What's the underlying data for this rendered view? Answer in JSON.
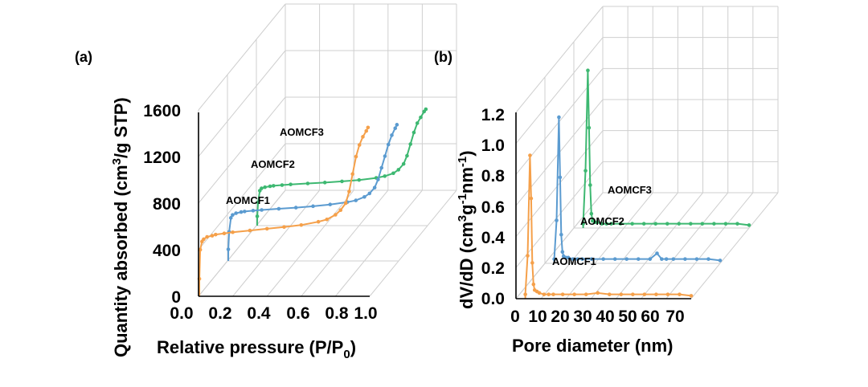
{
  "chart_data": [
    {
      "panel": "(a)",
      "type": "line",
      "xlabel": "Relative pressure (P/P",
      "xlabel_sub": "0",
      "xlabel_end": ")",
      "ylabel": "Quantity absorbed (cm",
      "ylabel_sup": "3",
      "ylabel_end": "/g STP)",
      "xticks": [
        "0.0",
        "0.2",
        "0.4",
        "0.6",
        "0.8",
        "1.0"
      ],
      "yticks": [
        "0",
        "400",
        "800",
        "1200",
        "1600"
      ],
      "xlim": [
        0,
        1.0
      ],
      "ylim": [
        0,
        1600
      ],
      "series": [
        {
          "name": "AOMCF1",
          "color": "#f5a04a",
          "x": [
            0.005,
            0.01,
            0.02,
            0.03,
            0.05,
            0.08,
            0.1,
            0.15,
            0.2,
            0.3,
            0.4,
            0.5,
            0.6,
            0.7,
            0.75,
            0.8,
            0.83,
            0.86,
            0.88,
            0.9,
            0.92,
            0.94,
            0.96,
            0.98,
            0.99
          ],
          "y": [
            150,
            400,
            470,
            490,
            510,
            520,
            530,
            540,
            550,
            565,
            580,
            595,
            612,
            640,
            660,
            700,
            740,
            800,
            900,
            1050,
            1200,
            1300,
            1370,
            1420,
            1450
          ]
        },
        {
          "name": "AOMCF2",
          "color": "#5b9bd0",
          "x": [
            0.005,
            0.01,
            0.02,
            0.03,
            0.05,
            0.08,
            0.1,
            0.15,
            0.2,
            0.3,
            0.4,
            0.5,
            0.6,
            0.7,
            0.75,
            0.8,
            0.83,
            0.86,
            0.88,
            0.9,
            0.92,
            0.94,
            0.96,
            0.98,
            0.99
          ],
          "y": [
            100,
            250,
            370,
            395,
            410,
            420,
            425,
            432,
            438,
            448,
            458,
            470,
            485,
            505,
            520,
            550,
            580,
            630,
            700,
            800,
            900,
            1000,
            1080,
            1140,
            1170
          ]
        },
        {
          "name": "AOMCF3",
          "color": "#3db871",
          "x": [
            0.005,
            0.01,
            0.02,
            0.03,
            0.05,
            0.08,
            0.1,
            0.15,
            0.2,
            0.3,
            0.4,
            0.5,
            0.6,
            0.7,
            0.75,
            0.8,
            0.83,
            0.86,
            0.88,
            0.9,
            0.92,
            0.94,
            0.96,
            0.98,
            0.99
          ],
          "y": [
            80,
            200,
            300,
            320,
            330,
            338,
            342,
            348,
            354,
            362,
            370,
            380,
            392,
            410,
            425,
            450,
            480,
            530,
            600,
            700,
            800,
            880,
            930,
            980,
            1000
          ]
        }
      ]
    },
    {
      "panel": "(b)",
      "type": "line",
      "xlabel": "Pore diameter (nm)",
      "ylabel": "dV/dD (cm",
      "ylabel_sup1": "3",
      "ylabel_mid": "g",
      "ylabel_sup2": "-1",
      "ylabel_mid2": "nm",
      "ylabel_sup3": "-1",
      "ylabel_end": ")",
      "xticks": [
        "0",
        "10",
        "20",
        "30",
        "40",
        "50",
        "60",
        "70"
      ],
      "yticks": [
        "0.0",
        "0.2",
        "0.4",
        "0.6",
        "0.8",
        "1.0",
        "1.2"
      ],
      "xlim": [
        0,
        75
      ],
      "ylim": [
        0,
        1.3
      ],
      "series": [
        {
          "name": "AOMCF1",
          "color": "#f5a04a",
          "x": [
            4,
            5,
            6,
            6.5,
            7,
            7.5,
            8,
            9,
            10,
            12,
            14,
            16,
            20,
            25,
            30,
            35,
            40,
            45,
            50,
            55,
            60,
            65,
            70,
            75
          ],
          "y": [
            0.03,
            0.3,
            1.0,
            0.7,
            0.25,
            0.1,
            0.06,
            0.05,
            0.04,
            0.03,
            0.03,
            0.03,
            0.03,
            0.03,
            0.03,
            0.04,
            0.03,
            0.03,
            0.03,
            0.03,
            0.03,
            0.03,
            0.03,
            0.02
          ]
        },
        {
          "name": "AOMCF2",
          "color": "#5b9bd0",
          "x": [
            4,
            5,
            6,
            6.5,
            7,
            7.5,
            8,
            9,
            10,
            12,
            14,
            16,
            20,
            25,
            30,
            35,
            40,
            45,
            48,
            50,
            52,
            55,
            60,
            65,
            70,
            75
          ],
          "y": [
            0.03,
            0.3,
            1.02,
            0.6,
            0.2,
            0.08,
            0.05,
            0.04,
            0.04,
            0.03,
            0.03,
            0.03,
            0.03,
            0.03,
            0.03,
            0.03,
            0.03,
            0.03,
            0.07,
            0.03,
            0.03,
            0.03,
            0.03,
            0.03,
            0.03,
            0.02
          ]
        },
        {
          "name": "AOMCF3",
          "color": "#3db871",
          "x": [
            4,
            5,
            6,
            6.5,
            7,
            7.5,
            8,
            9,
            10,
            12,
            14,
            16,
            20,
            25,
            30,
            35,
            40,
            45,
            50,
            55,
            60,
            65,
            70,
            75
          ],
          "y": [
            0.03,
            0.4,
            1.1,
            0.7,
            0.3,
            0.1,
            0.05,
            0.04,
            0.04,
            0.03,
            0.03,
            0.03,
            0.03,
            0.03,
            0.03,
            0.03,
            0.03,
            0.03,
            0.03,
            0.03,
            0.03,
            0.03,
            0.03,
            0.02
          ]
        }
      ]
    }
  ]
}
